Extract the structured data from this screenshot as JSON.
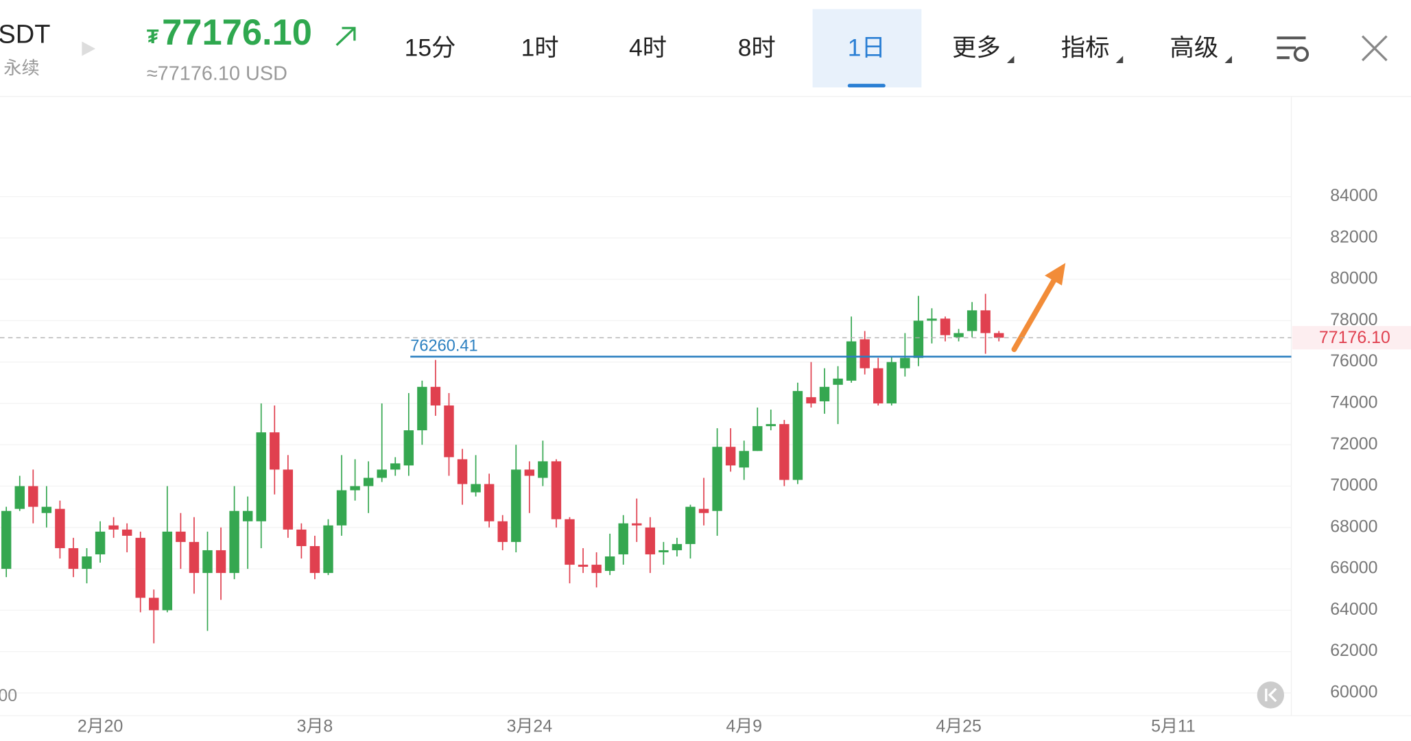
{
  "header": {
    "symbol": "SDT",
    "contract": "永续",
    "currency_symbol": "₮",
    "price": "77176.10",
    "price_usd": "≈77176.10 USD",
    "tabs": [
      "15分",
      "1时",
      "4时",
      "8时",
      "1日",
      "更多",
      "指标",
      "高级"
    ],
    "active_tab": 4
  },
  "chart_data": {
    "type": "candlestick",
    "up_color": "#35a750",
    "down_color": "#e0404f",
    "open": [
      66000,
      68900,
      70000,
      68700,
      68900,
      67000,
      66000,
      66700,
      68100,
      67900,
      67500,
      64600,
      64000,
      67800,
      67300,
      65800,
      66900,
      65800,
      68300,
      68300,
      72600,
      70800,
      67900,
      67100,
      65800,
      68100,
      69800,
      70000,
      70400,
      70800,
      71000,
      72700,
      74800,
      73900,
      71300,
      69700,
      70100,
      68300,
      67300,
      70800,
      70400,
      71200,
      68400,
      66200,
      66200,
      65900,
      66700,
      68200,
      68000,
      66800,
      66900,
      67200,
      68900,
      68800,
      71900,
      70900,
      71700,
      72900,
      73000,
      70300,
      74300,
      74100,
      74900,
      75100,
      77100,
      75700,
      74000,
      75700,
      76200,
      78000,
      78100,
      77200,
      77500,
      78500,
      77400
    ],
    "high": [
      69000,
      70500,
      70800,
      70000,
      69300,
      67500,
      67000,
      68300,
      68500,
      68200,
      67800,
      65000,
      70000,
      68700,
      68500,
      67800,
      68000,
      70000,
      69500,
      74000,
      73900,
      71500,
      68200,
      67600,
      68400,
      71500,
      71300,
      71200,
      74000,
      71400,
      74500,
      75100,
      76100,
      74500,
      71800,
      71500,
      70600,
      68600,
      72000,
      71200,
      72200,
      71300,
      68500,
      67000,
      66800,
      67700,
      68600,
      69400,
      68500,
      67300,
      67500,
      69100,
      70400,
      72800,
      72800,
      72200,
      73800,
      73700,
      73200,
      75000,
      76000,
      75700,
      75800,
      78200,
      77500,
      76200,
      76300,
      77400,
      79200,
      78600,
      78200,
      77600,
      78900,
      79300,
      77500
    ],
    "low": [
      65600,
      68800,
      68200,
      68000,
      66500,
      65600,
      65300,
      66300,
      67500,
      66800,
      63900,
      62400,
      63900,
      66000,
      64800,
      63000,
      64500,
      65500,
      66000,
      67000,
      69600,
      67500,
      66500,
      65500,
      65700,
      67600,
      69300,
      68700,
      70200,
      70500,
      70500,
      72000,
      73400,
      70500,
      69100,
      69500,
      68000,
      66900,
      66800,
      68700,
      70000,
      68000,
      65300,
      65800,
      65100,
      65700,
      66200,
      67300,
      65800,
      66200,
      66600,
      66500,
      68100,
      67600,
      70700,
      70300,
      71700,
      72700,
      70000,
      70100,
      73800,
      73500,
      73000,
      75000,
      75400,
      73900,
      73900,
      75300,
      75800,
      76900,
      77000,
      77000,
      77200,
      76400,
      77000
    ],
    "close": [
      68800,
      70000,
      69000,
      69000,
      67000,
      66000,
      66600,
      67800,
      67900,
      67600,
      64600,
      64000,
      67800,
      67300,
      65800,
      66900,
      65800,
      68800,
      68800,
      72600,
      70800,
      67900,
      67100,
      65800,
      68100,
      69800,
      70000,
      70400,
      70800,
      71100,
      72700,
      74800,
      73900,
      71400,
      70100,
      70100,
      68300,
      67300,
      70800,
      70500,
      71200,
      68400,
      66200,
      66100,
      65800,
      66600,
      68200,
      68100,
      66700,
      66900,
      67200,
      69000,
      68700,
      71900,
      71000,
      71700,
      72900,
      73000,
      70300,
      74600,
      74000,
      74800,
      75200,
      77000,
      75700,
      74000,
      76000,
      76200,
      78000,
      78100,
      77300,
      77400,
      78500,
      77400,
      77176.1
    ],
    "xlim": [
      -0.47,
      95.8
    ],
    "xticks": [
      {
        "value": 7,
        "label": "2月20"
      },
      {
        "value": 23,
        "label": "3月8"
      },
      {
        "value": 39,
        "label": "3月24"
      },
      {
        "value": 55,
        "label": "4月9"
      },
      {
        "value": 71,
        "label": "4月25"
      },
      {
        "value": 87,
        "label": "5月11"
      }
    ],
    "ylim": [
      58900,
      88800
    ],
    "yticks": [
      60000,
      62000,
      64000,
      66000,
      68000,
      70000,
      72000,
      74000,
      76000,
      78000,
      80000,
      82000,
      84000
    ],
    "grid": true,
    "support_line": 76260.41,
    "support_color": "#2a7fc0",
    "current_price": {
      "value": 77176.1,
      "label": "77176.10"
    },
    "left_cut_label": "00"
  }
}
